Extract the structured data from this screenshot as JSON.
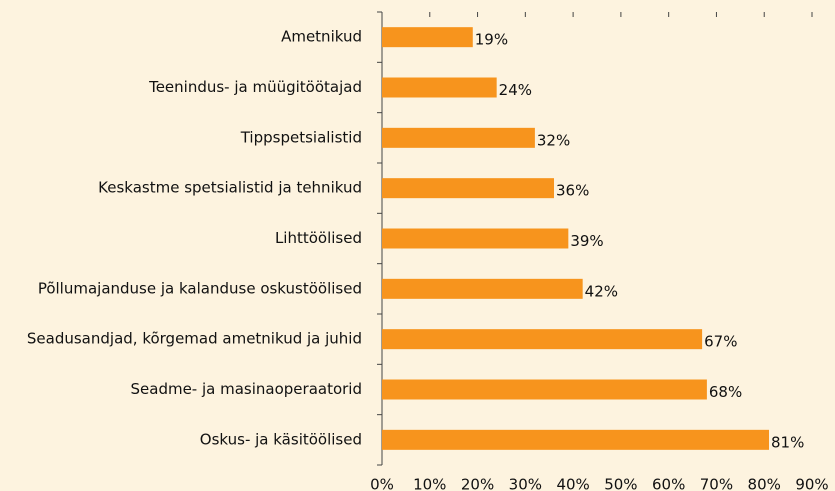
{
  "chart_data": {
    "type": "barh",
    "categories": [
      "Ametnikud",
      "Teenindus- ja müügitöötajad",
      "Tippspetsialistid",
      "Keskastme spetsialistid ja tehnikud",
      "Lihttöölised",
      "Põllumajanduse ja kalanduse oskustöölised",
      "Seadusandjad, kõrgemad ametnikud ja juhid",
      "Seadme- ja masinaoperaatorid",
      "Oskus- ja käsitöölised"
    ],
    "values": [
      19,
      24,
      32,
      36,
      39,
      42,
      67,
      68,
      81
    ],
    "value_labels": [
      "19%",
      "24%",
      "32%",
      "36%",
      "39%",
      "42%",
      "67%",
      "68%",
      "81%"
    ],
    "color": "#f7941d",
    "xlim": [
      0,
      90
    ],
    "xticks": [
      {
        "value": 0,
        "label": "0%"
      },
      {
        "value": 10,
        "label": "10%"
      },
      {
        "value": 20,
        "label": "20%"
      },
      {
        "value": 30,
        "label": "30%"
      },
      {
        "value": 40,
        "label": "40%"
      },
      {
        "value": 50,
        "label": "50%"
      },
      {
        "value": 60,
        "label": "60%"
      },
      {
        "value": 70,
        "label": "70%"
      },
      {
        "value": 80,
        "label": "80%"
      },
      {
        "value": 90,
        "label": "90%"
      }
    ],
    "grid": false
  }
}
